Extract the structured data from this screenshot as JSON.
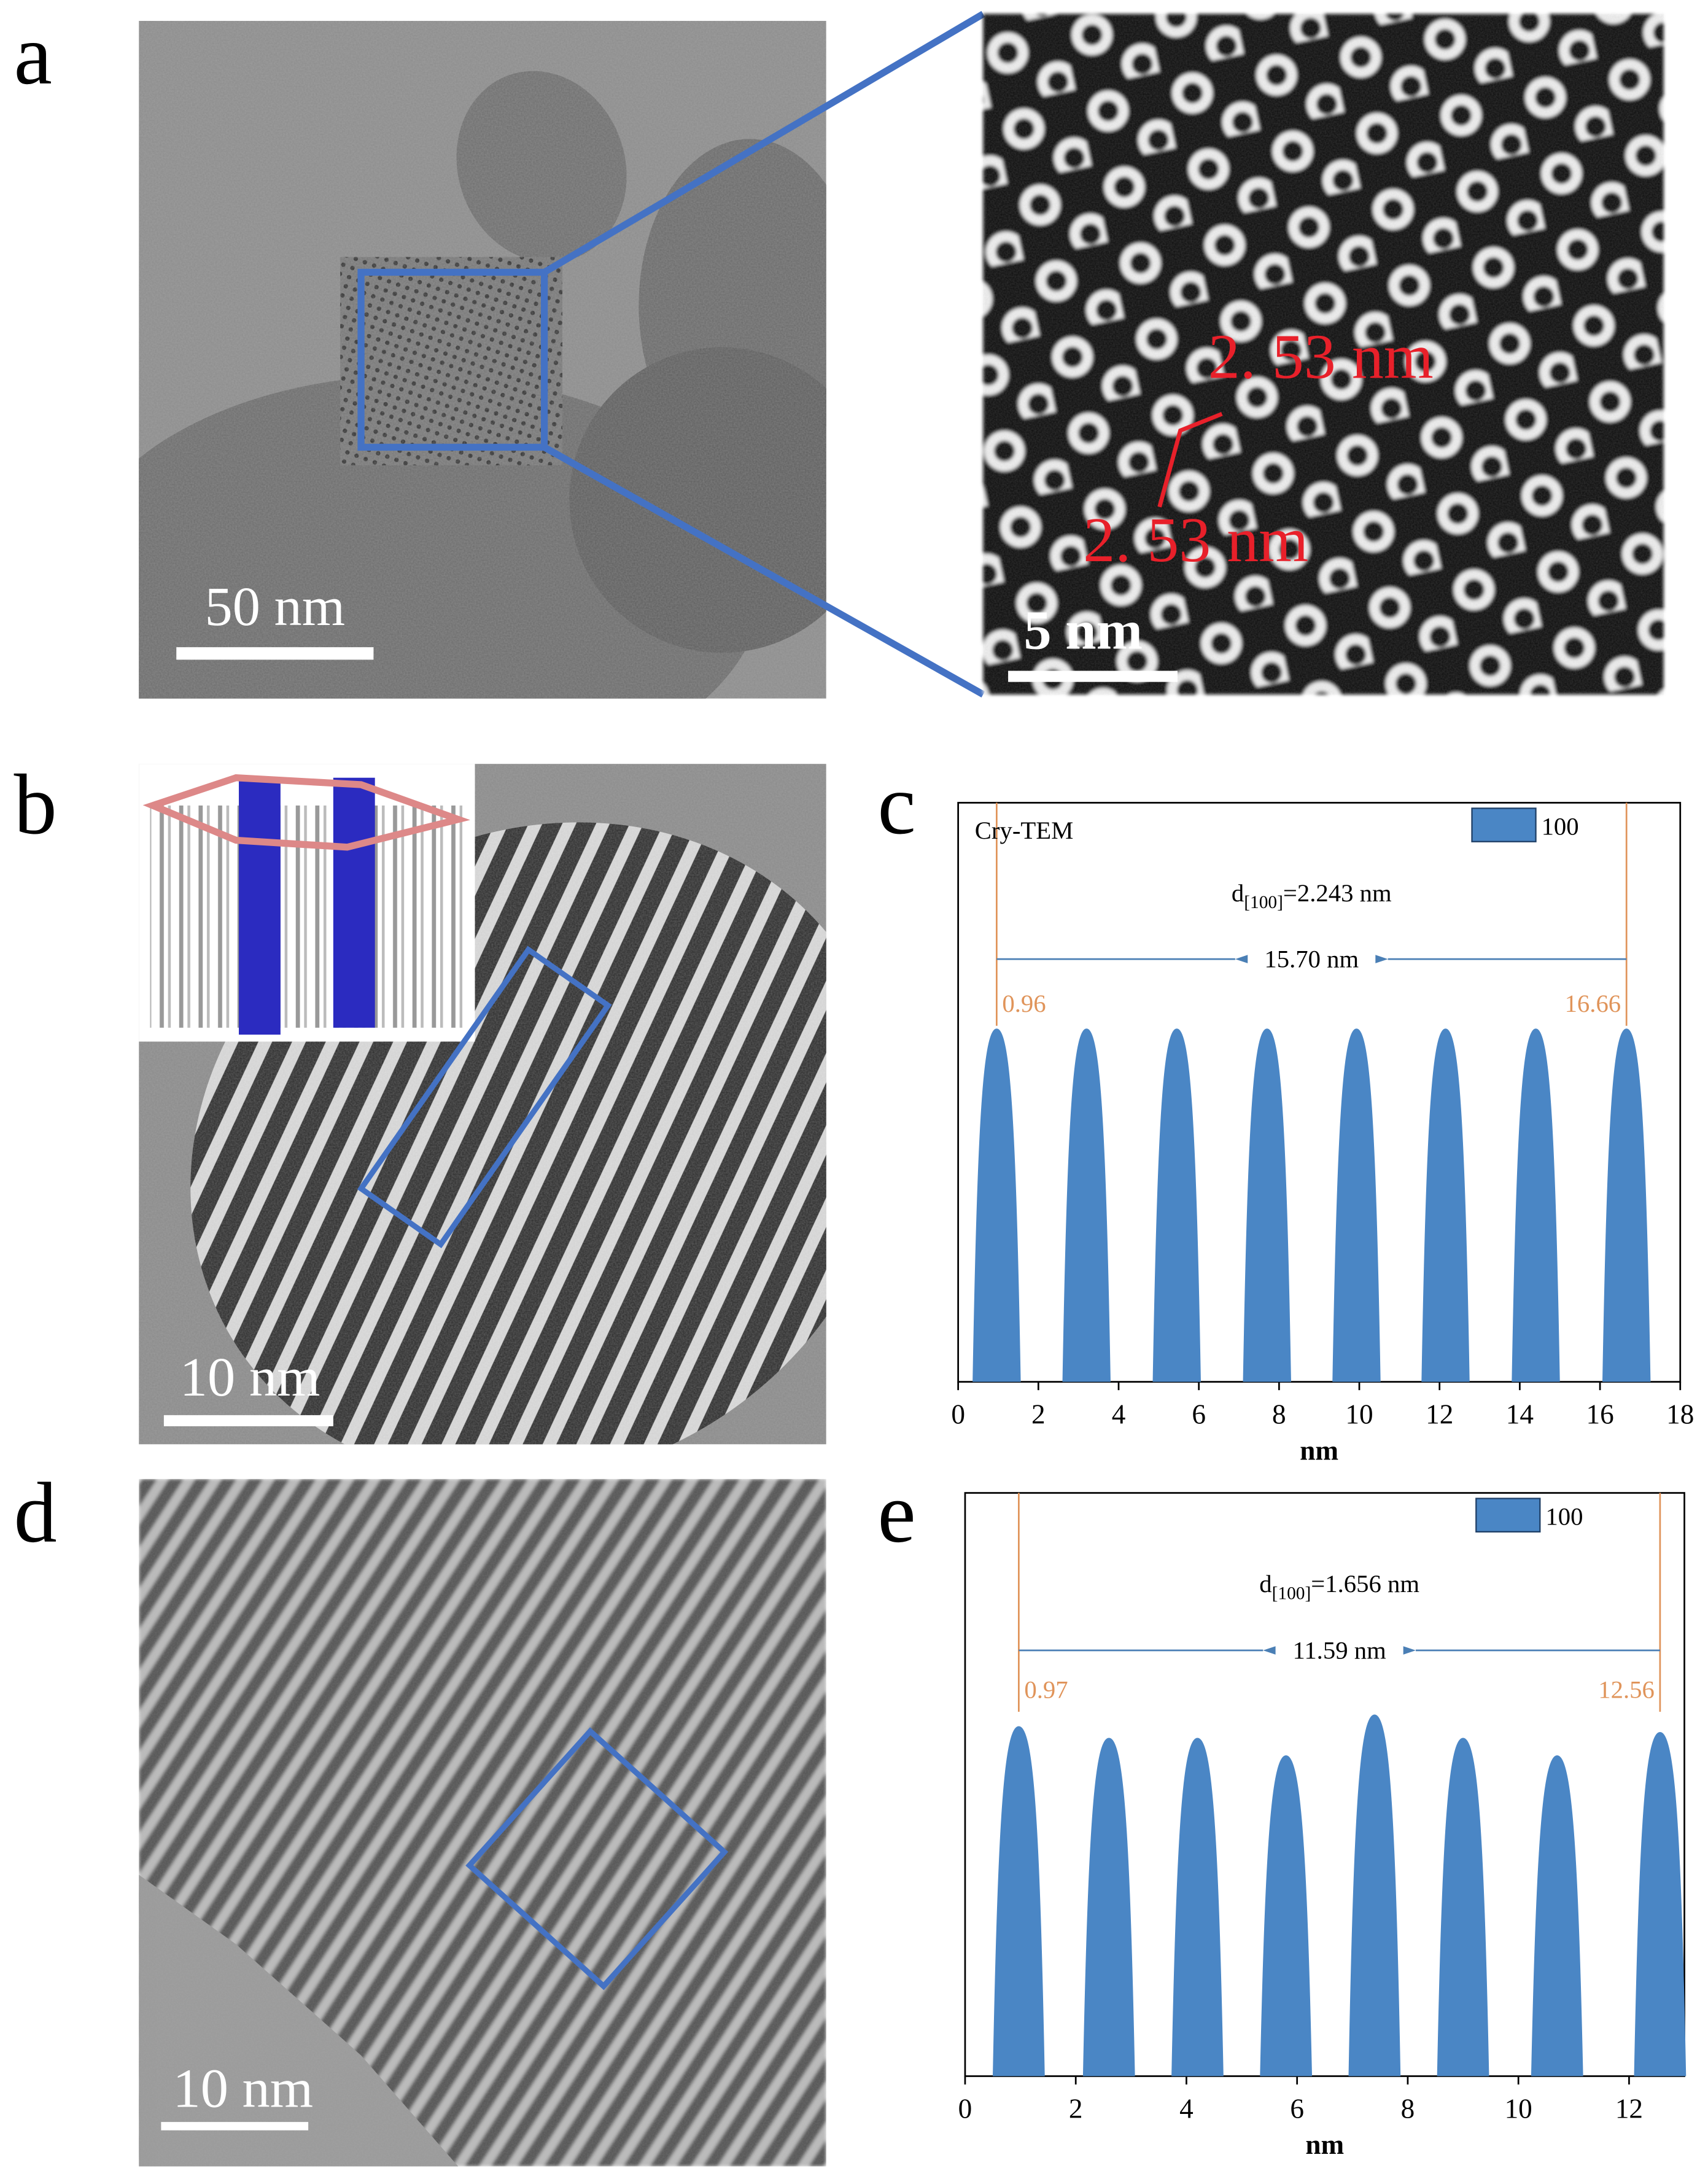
{
  "panels": {
    "a": {
      "label": "a",
      "scale_bar": "50 nm",
      "zoom": {
        "scale_bar": "5 nm",
        "spacing_labels": [
          "2. 53 nm",
          "2. 53 nm"
        ]
      }
    },
    "b": {
      "label": "b",
      "scale_bar": "10 nm"
    },
    "c": {
      "label": "c"
    },
    "d": {
      "label": "d",
      "scale_bar": "10 nm"
    },
    "e": {
      "label": "e"
    }
  },
  "chart_data": [
    {
      "type": "profile",
      "title": "Cry-TEM",
      "legend": "100",
      "spacing": {
        "symbol": "d",
        "index": "[100]",
        "text": "=2.243 nm"
      },
      "span_label": "15.70 nm",
      "markers": [
        0.96,
        16.66
      ],
      "x": [
        0.96,
        3.2,
        5.45,
        7.7,
        9.93,
        12.15,
        14.4,
        16.66
      ],
      "values": [
        0.61,
        0.61,
        0.61,
        0.61,
        0.61,
        0.61,
        0.61,
        0.61
      ],
      "peak_width": 1.2,
      "color": "#4a86c5",
      "marker_color": "#e0945a",
      "xlim": [
        0,
        18
      ],
      "xticks": [
        0,
        2,
        4,
        6,
        8,
        10,
        12,
        14,
        16,
        18
      ],
      "ylim": [
        0,
        1
      ],
      "xlabel": "nm"
    },
    {
      "type": "profile",
      "legend": "100",
      "spacing": {
        "symbol": "d",
        "index": "[100]",
        "text": "=1.656 nm"
      },
      "span_label": "11.59 nm",
      "markers": [
        0.97,
        12.56
      ],
      "x": [
        0.97,
        2.6,
        4.2,
        5.8,
        7.4,
        9.0,
        10.7,
        12.56
      ],
      "values": [
        0.6,
        0.58,
        0.58,
        0.55,
        0.62,
        0.58,
        0.55,
        0.59
      ],
      "peak_width": 0.94,
      "color": "#4a86c5",
      "marker_color": "#e0945a",
      "xlim": [
        0,
        13
      ],
      "xticks": [
        0,
        2,
        4,
        6,
        8,
        10,
        12
      ],
      "ylim": [
        0,
        1
      ],
      "xlabel": "nm"
    }
  ]
}
